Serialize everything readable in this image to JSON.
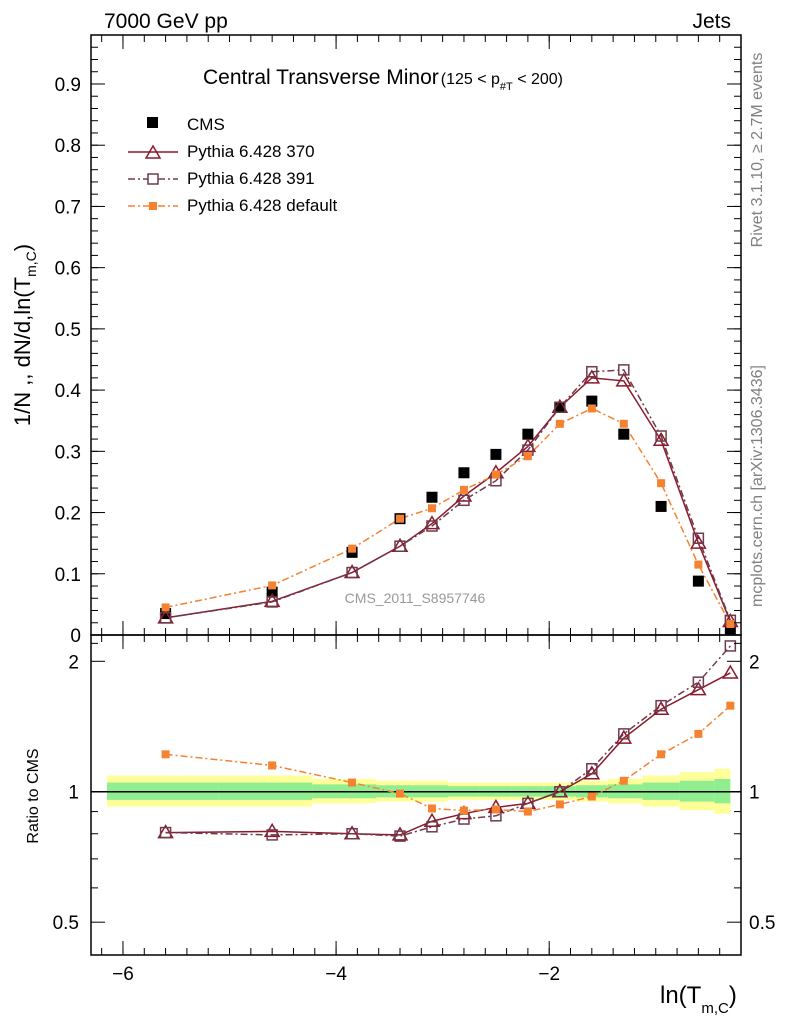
{
  "header": {
    "left": "7000 GeV pp",
    "right": "Jets"
  },
  "side_labels": {
    "rivet": "Rivet 3.1.10, ≥ 2.7M events",
    "mcplots": "mcplots.cern.ch [arXiv:1306.3436]"
  },
  "watermark": "CMS_2011_S8957746",
  "colors": {
    "cms": "#000000",
    "p370": "#8b1a2c",
    "p391": "#6e3b4d",
    "pdefault": "#f58231",
    "band_green": "#90ee90",
    "band_yellow": "#ffff99"
  },
  "chart_data": [
    {
      "type": "scatter",
      "title": "Central Transverse Minor",
      "title_suffix": {
        "pre": "(125 < p",
        "sub": "#T",
        "post": "  < 200)"
      },
      "ylabel": {
        "main": "1/N ,, dN/d,ln(T",
        "sub": "m,C",
        "close": ")"
      },
      "ylim": [
        0,
        0.98
      ],
      "yticks": [
        0,
        0.1,
        0.2,
        0.3,
        0.4,
        0.5,
        0.6,
        0.7,
        0.8,
        0.9
      ],
      "ytick_labels": [
        "0",
        "0.1",
        "0.2",
        "0.3",
        "0.4",
        "0.5",
        "0.6",
        "0.7",
        "0.8",
        "0.9"
      ],
      "legend_position": "top-left",
      "series": [
        {
          "name": "CMS",
          "x": [
            -5.6,
            -4.6,
            -3.85,
            -3.4,
            -3.1,
            -2.8,
            -2.5,
            -2.2,
            -1.9,
            -1.6,
            -1.3,
            -0.95,
            -0.6,
            -0.3
          ],
          "values": [
            0.035,
            0.07,
            0.135,
            0.19,
            0.225,
            0.265,
            0.295,
            0.328,
            0.372,
            0.382,
            0.328,
            0.21,
            0.088,
            0.01
          ]
        },
        {
          "name": "Pythia 6.428 370",
          "x": [
            -5.6,
            -4.6,
            -3.85,
            -3.4,
            -3.1,
            -2.8,
            -2.5,
            -2.2,
            -1.9,
            -1.6,
            -1.3,
            -0.95,
            -0.6,
            -0.3
          ],
          "values": [
            0.028,
            0.055,
            0.102,
            0.145,
            0.182,
            0.227,
            0.265,
            0.308,
            0.372,
            0.42,
            0.415,
            0.318,
            0.15,
            0.022
          ]
        },
        {
          "name": "Pythia 6.428 391",
          "x": [
            -5.6,
            -4.6,
            -3.85,
            -3.4,
            -3.1,
            -2.8,
            -2.5,
            -2.2,
            -1.9,
            -1.6,
            -1.3,
            -0.95,
            -0.6,
            -0.3
          ],
          "values": [
            0.028,
            0.054,
            0.102,
            0.145,
            0.178,
            0.22,
            0.252,
            0.302,
            0.372,
            0.43,
            0.433,
            0.325,
            0.158,
            0.024
          ]
        },
        {
          "name": "Pythia 6.428 default",
          "x": [
            -5.6,
            -4.6,
            -3.85,
            -3.4,
            -3.1,
            -2.8,
            -2.5,
            -2.2,
            -1.9,
            -1.6,
            -1.3,
            -0.95,
            -0.6,
            -0.3
          ],
          "values": [
            0.045,
            0.081,
            0.141,
            0.19,
            0.207,
            0.237,
            0.262,
            0.292,
            0.345,
            0.37,
            0.345,
            0.248,
            0.115,
            0.018
          ]
        }
      ]
    },
    {
      "type": "scatter",
      "ylabel": "Ratio to CMS",
      "xlabel": {
        "main": "ln(T",
        "sub": "m,C",
        "close": ")"
      },
      "xlim": [
        -6.3,
        -0.2
      ],
      "xticks": [
        -6,
        -4,
        -2
      ],
      "xtick_labels": [
        "−6",
        "−4",
        "−2"
      ],
      "ylim": [
        0.42,
        2.3
      ],
      "ytick_labels": [
        {
          "value": 0.5,
          "label": "0.5"
        },
        {
          "value": 1,
          "label": "1"
        },
        {
          "value": 2,
          "label": "2"
        }
      ],
      "series": [
        {
          "name": "Pythia 6.428 370",
          "x": [
            -5.6,
            -4.6,
            -3.85,
            -3.4,
            -3.1,
            -2.8,
            -2.5,
            -2.2,
            -1.9,
            -1.6,
            -1.3,
            -0.95,
            -0.6,
            -0.3
          ],
          "values": [
            0.805,
            0.81,
            0.8,
            0.795,
            0.855,
            0.89,
            0.92,
            0.94,
            1.0,
            1.1,
            1.33,
            1.55,
            1.72,
            1.88
          ]
        },
        {
          "name": "Pythia 6.428 391",
          "x": [
            -5.6,
            -4.6,
            -3.85,
            -3.4,
            -3.1,
            -2.8,
            -2.5,
            -2.2,
            -1.9,
            -1.6,
            -1.3,
            -0.95,
            -0.6,
            -0.3
          ],
          "values": [
            0.805,
            0.795,
            0.8,
            0.79,
            0.83,
            0.865,
            0.88,
            0.94,
            1.0,
            1.13,
            1.36,
            1.58,
            1.79,
            2.17
          ]
        },
        {
          "name": "Pythia 6.428 default",
          "x": [
            -5.6,
            -4.6,
            -3.85,
            -3.4,
            -3.1,
            -2.8,
            -2.5,
            -2.2,
            -1.9,
            -1.6,
            -1.3,
            -0.95,
            -0.6,
            -0.3
          ],
          "values": [
            1.22,
            1.15,
            1.05,
            0.99,
            0.915,
            0.905,
            0.91,
            0.9,
            0.935,
            0.975,
            1.06,
            1.22,
            1.36,
            1.58
          ]
        }
      ]
    }
  ]
}
